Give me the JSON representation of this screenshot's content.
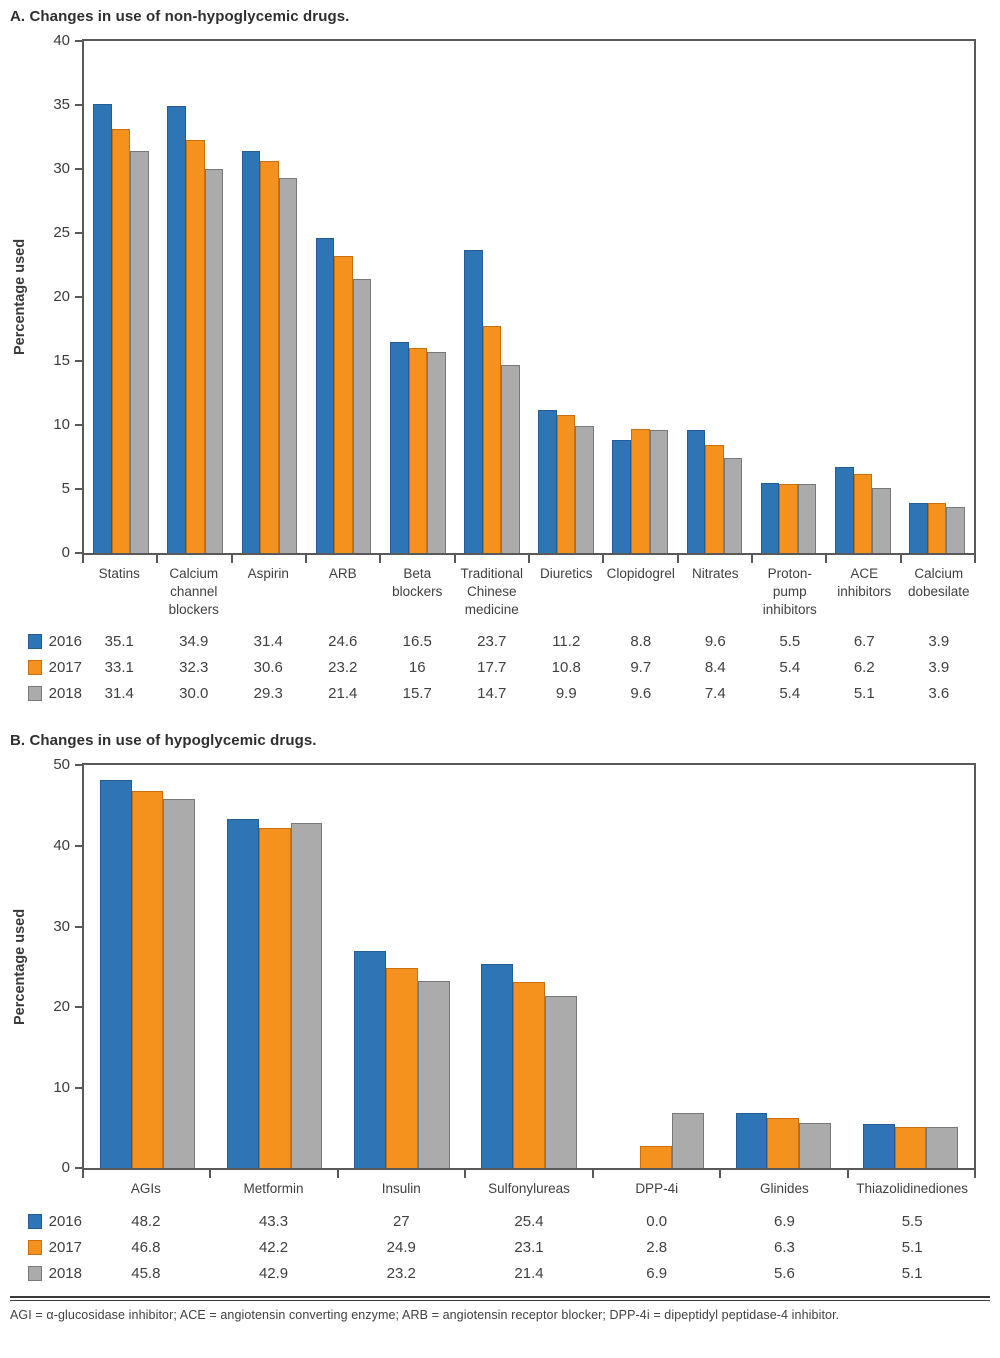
{
  "colors": {
    "axis": "#58595b",
    "text": "#414042",
    "series": {
      "2016": {
        "fill": "#2e75b6",
        "border": "#235d93"
      },
      "2017": {
        "fill": "#f5921e",
        "border": "#c96f0e"
      },
      "2018": {
        "fill": "#ababab",
        "border": "#77787b"
      }
    }
  },
  "footnote": "AGI = α-glucosidase inhibitor; ACE = angiotensin converting enzyme; ARB = angiotensin receptor blocker; DPP-4i = dipeptidyl peptidase-4 inhibitor.",
  "chart_data": [
    {
      "type": "bar",
      "title": "A. Changes in use of non-hypoglycemic drugs.",
      "ylabel": "Percentage used",
      "ylim": [
        0,
        40
      ],
      "ytick_step": 5,
      "grid": false,
      "legend_position": "table-below",
      "categories": [
        "Statins",
        "Calcium channel blockers",
        "Aspirin",
        "ARB",
        "Beta blockers",
        "Traditional Chinese medicine",
        "Diuretics",
        "Clopidogrel",
        "Nitrates",
        "Proton-pump inhibitors",
        "ACE inhibitors",
        "Calcium dobesilate"
      ],
      "categories_display": [
        "Statins",
        "Calcium\nchannel\nblockers",
        "Aspirin",
        "ARB",
        "Beta\nblockers",
        "Traditional\nChinese\nmedicine",
        "Diuretics",
        "Clopidogrel",
        "Nitrates",
        "Proton-\npump\ninhibitors",
        "ACE\ninhibitors",
        "Calcium\ndobesilate"
      ],
      "series": [
        {
          "name": "2016",
          "values": [
            35.1,
            34.9,
            31.4,
            24.6,
            16.5,
            23.7,
            11.2,
            8.8,
            9.6,
            5.5,
            6.7,
            3.9
          ],
          "display": [
            "35.1",
            "34.9",
            "31.4",
            "24.6",
            "16.5",
            "23.7",
            "11.2",
            "8.8",
            "9.6",
            "5.5",
            "6.7",
            "3.9"
          ]
        },
        {
          "name": "2017",
          "values": [
            33.1,
            32.3,
            30.6,
            23.2,
            16,
            17.7,
            10.8,
            9.7,
            8.4,
            5.4,
            6.2,
            3.9
          ],
          "display": [
            "33.1",
            "32.3",
            "30.6",
            "23.2",
            "16",
            "17.7",
            "10.8",
            "9.7",
            "8.4",
            "5.4",
            "6.2",
            "3.9"
          ]
        },
        {
          "name": "2018",
          "values": [
            31.4,
            30.0,
            29.3,
            21.4,
            15.7,
            14.7,
            9.9,
            9.6,
            7.4,
            5.4,
            5.1,
            3.6
          ],
          "display": [
            "31.4",
            "30.0",
            "29.3",
            "21.4",
            "15.7",
            "14.7",
            "9.9",
            "9.6",
            "7.4",
            "5.4",
            "5.1",
            "3.6"
          ]
        }
      ]
    },
    {
      "type": "bar",
      "title": "B. Changes in use of hypoglycemic drugs.",
      "ylabel": "Percentage used",
      "ylim": [
        0,
        50
      ],
      "ytick_step": 10,
      "grid": false,
      "legend_position": "table-below",
      "categories": [
        "AGIs",
        "Metformin",
        "Insulin",
        "Sulfonylureas",
        "DPP-4i",
        "Glinides",
        "Thiazolidinediones"
      ],
      "categories_display": [
        "AGIs",
        "Metformin",
        "Insulin",
        "Sulfonylureas",
        "DPP-4i",
        "Glinides",
        "Thiazolidinediones"
      ],
      "series": [
        {
          "name": "2016",
          "values": [
            48.2,
            43.3,
            27,
            25.4,
            0.0,
            6.9,
            5.5
          ],
          "display": [
            "48.2",
            "43.3",
            "27",
            "25.4",
            "0.0",
            "6.9",
            "5.5"
          ]
        },
        {
          "name": "2017",
          "values": [
            46.8,
            42.2,
            24.9,
            23.1,
            2.8,
            6.3,
            5.1
          ],
          "display": [
            "46.8",
            "42.2",
            "24.9",
            "23.1",
            "2.8",
            "6.3",
            "5.1"
          ]
        },
        {
          "name": "2018",
          "values": [
            45.8,
            42.9,
            23.2,
            21.4,
            6.9,
            5.6,
            5.1
          ],
          "display": [
            "45.8",
            "42.9",
            "23.2",
            "21.4",
            "6.9",
            "5.6",
            "5.1"
          ]
        }
      ]
    }
  ]
}
